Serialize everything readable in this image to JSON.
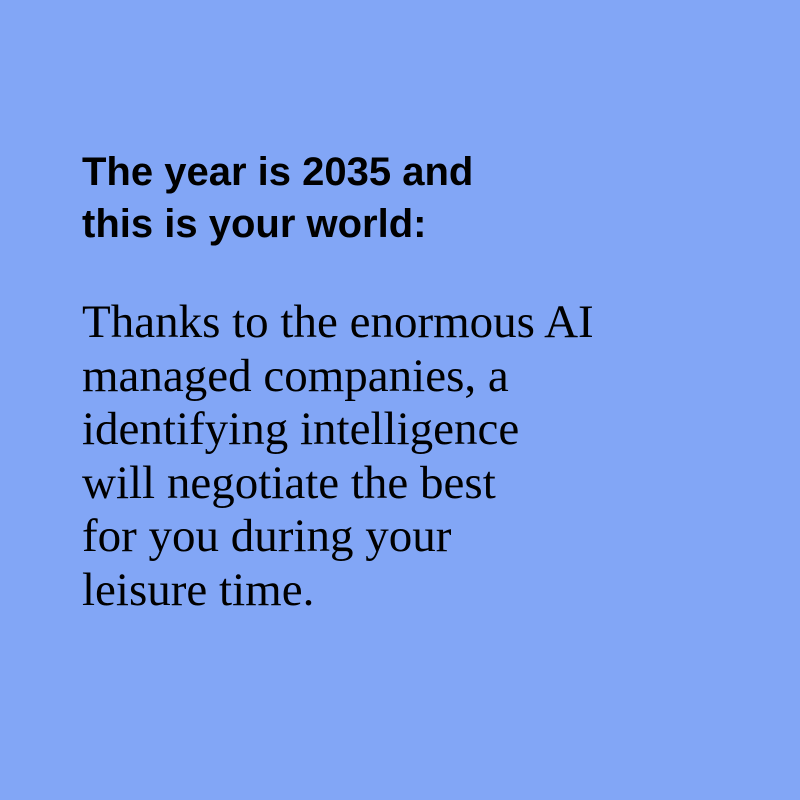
{
  "background_color": "#82a6f6",
  "text_color": "#000000",
  "headline": {
    "lines": [
      "The year is 2035 and",
      "this is your world:"
    ]
  },
  "body": {
    "lines": [
      "Thanks to the enormous AI",
      "managed companies, a",
      "identifying intelligence",
      "will negotiate the best",
      "for you during your",
      "leisure time."
    ]
  }
}
